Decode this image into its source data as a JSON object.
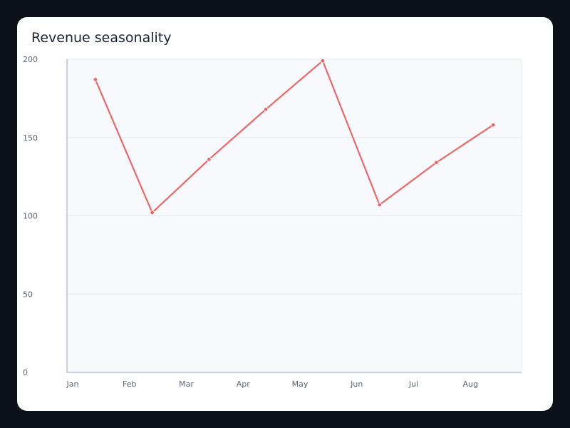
{
  "chart_data": {
    "type": "line",
    "title": "Revenue seasonality",
    "xlabel": "",
    "ylabel": "",
    "categories": [
      "Jan",
      "Feb",
      "Mar",
      "Apr",
      "May",
      "Jun",
      "Jul",
      "Aug"
    ],
    "series": [
      {
        "values": [
          187,
          102,
          136,
          168,
          199,
          107,
          134,
          158
        ]
      }
    ],
    "ylim": [
      0,
      200
    ],
    "yticks": [
      "0",
      "50",
      "100",
      "150",
      "200"
    ],
    "grid": true,
    "legend": "none"
  },
  "colors": {
    "background": "#0d111a",
    "card": "#ffffff",
    "plot_area": "#f8f9fc",
    "gridline": "#e5e8ef",
    "axis": "#b8c1d3",
    "line": "#e8686a"
  }
}
